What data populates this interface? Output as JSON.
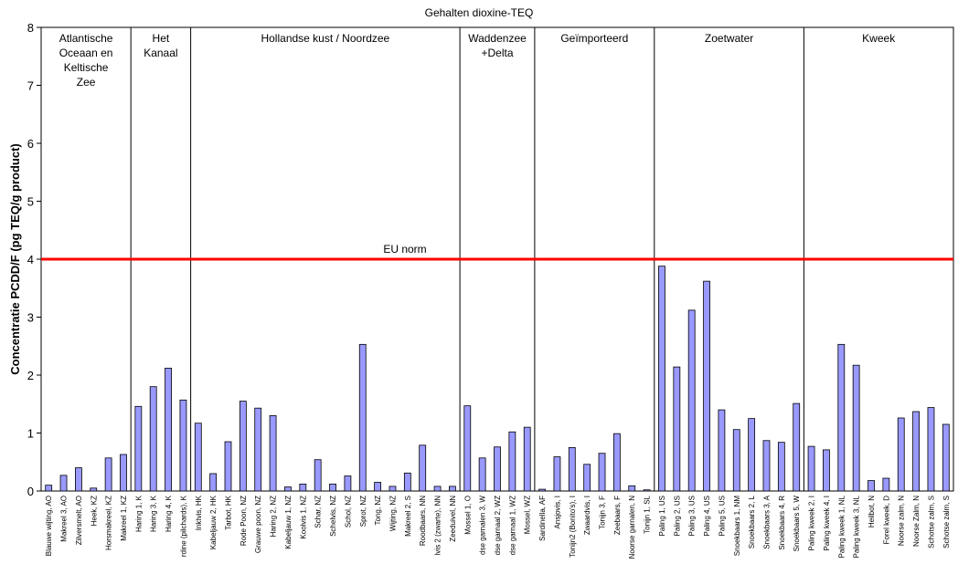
{
  "chart_data": {
    "type": "bar",
    "title": "Gehalten dioxine-TEQ",
    "y_label": "Concentratie PCDD/F (pg TEQ/g product)",
    "categories": [
      "Blauwe wijting, AO",
      "Makreel 3, AO",
      "Zilversmelt, AO",
      "Heek, KZ",
      "Horsmakreel, KZ",
      "Makreel 1, KZ",
      "Haring 1, K",
      "Haring 3, K",
      "Haring 4, K",
      "rdine (pilchards), K",
      "Inktvis, HK",
      "Kabeljauw 2, HK",
      "Tarbot, HK",
      "Rode Poon, NZ",
      "Grauwe poon, NZ",
      "Haring 2, NZ",
      "Kabeljauw 1, NZ",
      "Koolvis 1, NZ",
      "Schar, NZ",
      "Schelvis, NZ",
      "Schol, NZ",
      "Sprot, NZ",
      "Tong, NZ",
      "Wijting, NZ",
      "Makreel 2, S",
      "Roodbaars, NN",
      "lvis 2 (zwarte), NN",
      "Zeeduivel, NN",
      "Mossel 1, O",
      "dse garnalen 3, W",
      "dse garnaal 2, WZ",
      "dse garnaal 1, WZ",
      "Mossel, WZ",
      "Sardinella, AF",
      "Ansjovis, I",
      "Tonijn2 (Bonito's), I",
      "Zwaardvis, I",
      "Tonijn 3, F",
      "Zeebaars, F",
      "Noorse garnalen, N",
      "Tonijn 1, SL",
      "Paling 1, US",
      "Paling 2, US",
      "Paling 3, US",
      "Paling 4, US",
      "Paling 5, US",
      "Snoekbaars 1, NM",
      "Snoekbaars 2, L",
      "Snoekbaars 3, A",
      "Snoekbaars 4, R",
      "Snoekbaars 5, W",
      "Paling kweek 2, I",
      "Paling kweek 4, I",
      "Paling kweek 1, NL",
      "Paling kweek 3, NL",
      "Heilbot, N",
      "Forel kweek, D",
      "Noorse zalm, N",
      "Noorse Zalm, N",
      "Schotse zalm, S",
      "Schotse zalm, S"
    ],
    "values": [
      0.1,
      0.27,
      0.4,
      0.05,
      0.57,
      0.63,
      1.46,
      1.8,
      2.12,
      1.57,
      1.17,
      0.3,
      0.85,
      1.55,
      1.43,
      1.3,
      0.07,
      0.12,
      0.54,
      0.12,
      0.26,
      2.53,
      0.15,
      0.08,
      0.31,
      0.79,
      0.08,
      0.08,
      1.47,
      0.57,
      0.76,
      1.02,
      1.1,
      0.03,
      0.59,
      0.75,
      0.46,
      0.65,
      0.99,
      0.09,
      0.02,
      3.88,
      2.14,
      3.12,
      3.62,
      1.4,
      1.06,
      1.25,
      0.87,
      0.84,
      1.51,
      0.77,
      0.71,
      2.53,
      2.17,
      0.18,
      0.22,
      1.26,
      1.37,
      1.44,
      1.15
    ],
    "color": "#9999ff",
    "groups": [
      {
        "label": [
          "Atlantische",
          "Oceaan en",
          "Keltische",
          "Zee"
        ],
        "size": 6
      },
      {
        "label": [
          "Het",
          "Kanaal"
        ],
        "size": 4
      },
      {
        "label": [
          "Hollandse kust / Noordzee"
        ],
        "size": 18
      },
      {
        "label": [
          "Waddenzee",
          "+Delta"
        ],
        "size": 5
      },
      {
        "label": [
          "Geïmporteerd"
        ],
        "size": 8
      },
      {
        "label": [
          "Zoetwater"
        ],
        "size": 10
      },
      {
        "label": [
          "Kweek"
        ],
        "size": 10
      }
    ],
    "reference_line": {
      "value": 4,
      "label": "EU norm",
      "color": "#ff0000"
    },
    "ylim": [
      0,
      8
    ],
    "yticks": [
      0,
      1,
      2,
      3,
      4,
      5,
      6,
      7,
      8
    ],
    "grid": false
  }
}
